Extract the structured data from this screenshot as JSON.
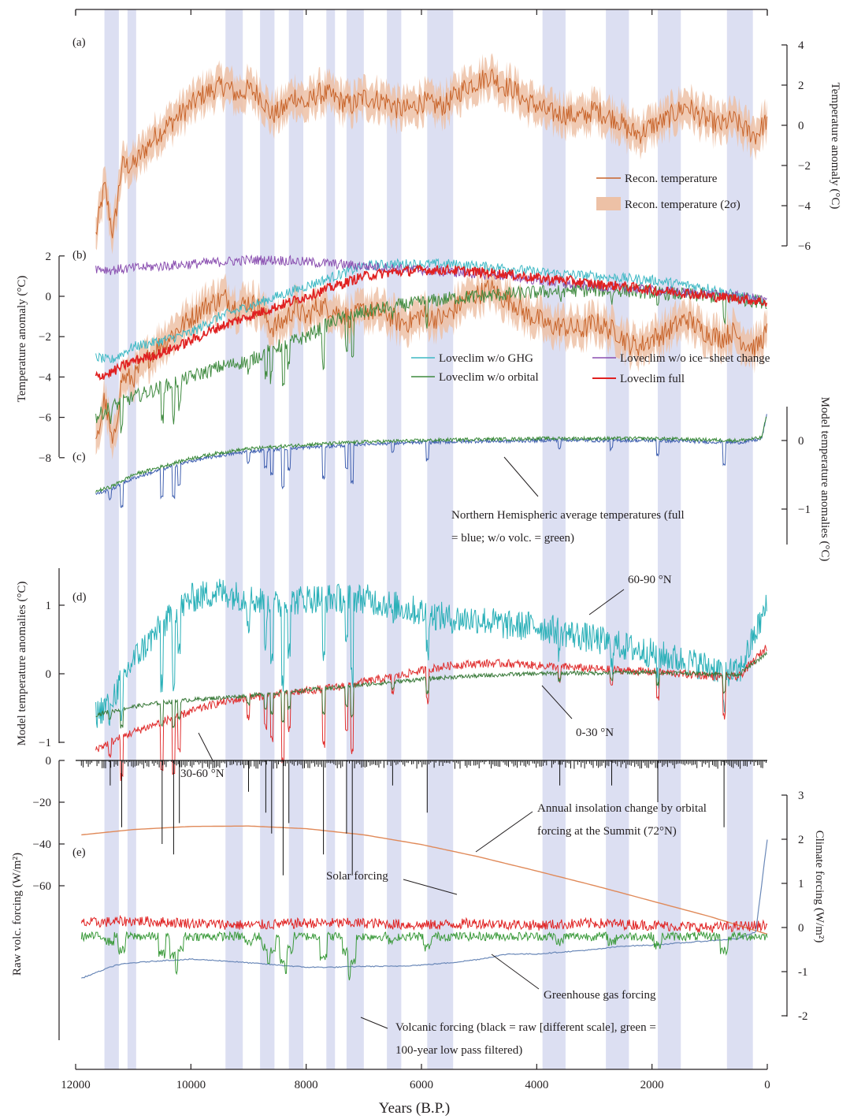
{
  "colors": {
    "band": "#dcdff2",
    "recon_line": "#c8642a",
    "recon_band": "#edc1a6",
    "ghg": "#3db8c4",
    "orbital": "#3f8a3f",
    "ice": "#8a4fb0",
    "full": "#e02020",
    "nh_full": "#4060b0",
    "nh_novolc": "#3a8a3a",
    "lat60": "#2ab0b8",
    "lat30": "#e03030",
    "lat0": "#3a7a3a",
    "insolation": "#e08a5a",
    "solar": "#e02020",
    "ghg_forcing": "#6a88b8",
    "volc_raw": "#111111",
    "volc_filt": "#3a9a3a",
    "text": "#231f20"
  },
  "chart_data": {
    "type": "line",
    "x_axis": {
      "label": "Years (B.P.)",
      "range": [
        12000,
        0
      ],
      "ticks": [
        "12000",
        "10000",
        "8000",
        "6000",
        "4000",
        "2000",
        "0"
      ],
      "tick_values": [
        12000,
        10000,
        8000,
        6000,
        4000,
        2000,
        0
      ]
    },
    "shaded_periods_bp": [
      [
        11500,
        11250
      ],
      [
        11100,
        10950
      ],
      [
        9400,
        9100
      ],
      [
        8800,
        8550
      ],
      [
        8300,
        8050
      ],
      [
        7650,
        7500
      ],
      [
        7300,
        7000
      ],
      [
        6600,
        6350
      ],
      [
        5900,
        5450
      ],
      [
        3900,
        3500
      ],
      [
        2800,
        2400
      ],
      [
        1900,
        1500
      ],
      [
        700,
        250
      ]
    ],
    "panels": [
      {
        "id": "a",
        "label": "(a)",
        "ylabel": "Temperature anomaly (°C)",
        "ylim": [
          -6,
          4
        ],
        "ticks": [
          "4",
          "2",
          "0",
          "−2",
          "−4",
          "−6"
        ],
        "tick_values": [
          4,
          2,
          0,
          -2,
          -4,
          -6
        ],
        "series": [
          {
            "name": "Recon. temperature",
            "x": [
              11650,
              11500,
              11350,
              11200,
              11000,
              10800,
              10600,
              10400,
              10200,
              10000,
              9800,
              9600,
              9400,
              9200,
              9000,
              8800,
              8600,
              8400,
              8200,
              8000,
              7800,
              7600,
              7400,
              7200,
              7000,
              6800,
              6600,
              6400,
              6200,
              6000,
              5800,
              5600,
              5400,
              5200,
              5000,
              4800,
              4600,
              4400,
              4200,
              4000,
              3800,
              3600,
              3400,
              3200,
              3000,
              2800,
              2600,
              2400,
              2200,
              2000,
              1800,
              1600,
              1400,
              1200,
              1000,
              800,
              600,
              400,
              200,
              0
            ],
            "y": [
              -5.5,
              -3.0,
              -5.5,
              -2.0,
              -2.0,
              -1.2,
              -0.5,
              0.0,
              0.5,
              1.0,
              1.5,
              1.8,
              2.0,
              1.5,
              1.8,
              1.5,
              0.5,
              0.8,
              1.5,
              1.0,
              1.6,
              1.5,
              1.2,
              1.0,
              1.4,
              1.3,
              1.2,
              0.8,
              0.8,
              1.2,
              1.0,
              1.0,
              1.5,
              2.0,
              2.2,
              2.5,
              2.0,
              1.8,
              1.2,
              1.0,
              0.6,
              0.6,
              0.5,
              0.4,
              0.8,
              0.5,
              0.3,
              -0.3,
              -0.4,
              0.0,
              0.2,
              0.6,
              1.0,
              0.5,
              0.2,
              0.0,
              0.3,
              -0.2,
              -0.5,
              0.3
            ],
            "uncertainty_2sigma": 0.8
          }
        ]
      },
      {
        "id": "b",
        "label": "(b)",
        "ylabel": "Temperature anomaly (°C)",
        "ylim": [
          -8,
          2
        ],
        "ticks": [
          "2",
          "0",
          "−2",
          "−4",
          "−6",
          "−8"
        ],
        "tick_values": [
          2,
          0,
          -2,
          -4,
          -6,
          -8
        ],
        "x": [
          11650,
          11400,
          11000,
          10500,
          10000,
          9500,
          9000,
          8500,
          8000,
          7500,
          7000,
          6500,
          6000,
          5500,
          5000,
          4500,
          4000,
          3500,
          3000,
          2500,
          2000,
          1500,
          1000,
          500,
          0
        ],
        "series": [
          {
            "name": "Loveclim w/o GHG",
            "y": [
              -3.0,
              -3.2,
              -2.5,
              -2.2,
              -1.8,
              -1.0,
              -0.5,
              0.0,
              0.5,
              1.0,
              1.5,
              1.6,
              1.6,
              1.6,
              1.5,
              1.4,
              1.2,
              1.1,
              1.0,
              0.9,
              0.8,
              0.6,
              0.4,
              0.0,
              -0.3
            ]
          },
          {
            "name": "Loveclim w/o orbital",
            "y": [
              -6.0,
              -5.5,
              -5.0,
              -4.5,
              -4.0,
              -3.5,
              -3.2,
              -2.5,
              -2.0,
              -1.2,
              -0.8,
              -0.5,
              -0.3,
              -0.1,
              0.0,
              0.1,
              0.2,
              0.3,
              0.3,
              0.3,
              0.2,
              0.1,
              0.0,
              -0.1,
              -0.3
            ]
          },
          {
            "name": "Loveclim w/o ice−sheet change",
            "y": [
              1.4,
              1.3,
              1.4,
              1.5,
              1.6,
              1.7,
              1.8,
              1.8,
              1.7,
              1.6,
              1.5,
              1.4,
              1.3,
              1.2,
              1.1,
              1.0,
              0.8,
              0.6,
              0.5,
              0.4,
              0.3,
              0.2,
              0.1,
              0.0,
              -0.2
            ]
          },
          {
            "name": "Loveclim full",
            "y": [
              -4.0,
              -3.8,
              -3.2,
              -2.8,
              -2.2,
              -1.5,
              -1.0,
              -0.5,
              0.0,
              0.5,
              1.0,
              1.2,
              1.3,
              1.3,
              1.2,
              1.1,
              0.9,
              0.8,
              0.6,
              0.5,
              0.3,
              0.2,
              0.0,
              -0.1,
              -0.3
            ]
          }
        ]
      },
      {
        "id": "c",
        "label": "(c)",
        "ylabel": "Model temperature anomalies (°C)",
        "ylim": [
          -1.5,
          0.5
        ],
        "ticks": [
          "0",
          "−1"
        ],
        "tick_values": [
          0,
          -1
        ],
        "x": [
          11650,
          11400,
          11000,
          10500,
          10000,
          9500,
          9000,
          8500,
          8000,
          7500,
          7000,
          6500,
          6000,
          5500,
          5000,
          4500,
          4000,
          3500,
          3000,
          2500,
          2000,
          1500,
          1000,
          500,
          100,
          0
        ],
        "series": [
          {
            "name": "Northern Hemispheric average temperatures (full = blue; w/o volc. = green)",
            "key": "full",
            "y": [
              -0.78,
              -0.72,
              -0.55,
              -0.42,
              -0.3,
              -0.22,
              -0.16,
              -0.13,
              -0.1,
              -0.08,
              -0.05,
              -0.04,
              -0.03,
              -0.02,
              -0.01,
              -0.01,
              0.0,
              0.01,
              0.0,
              0.0,
              0.0,
              -0.01,
              -0.02,
              -0.03,
              0.02,
              0.4
            ]
          },
          {
            "key": "w/o volc.",
            "y": [
              -0.74,
              -0.68,
              -0.5,
              -0.38,
              -0.26,
              -0.18,
              -0.12,
              -0.09,
              -0.06,
              -0.04,
              -0.02,
              -0.01,
              0.0,
              0.01,
              0.02,
              0.02,
              0.03,
              0.03,
              0.03,
              0.03,
              0.03,
              0.02,
              0.01,
              0.0,
              0.04,
              0.4
            ]
          }
        ],
        "annotation": "Northern Hemispheric average temperatures (full = blue; w/o volc. = green)"
      },
      {
        "id": "d",
        "label": "(d)",
        "ylabel": "Model temperature anomalies (°C)",
        "ylim": [
          -1.5,
          1.5
        ],
        "ticks": [
          "1",
          "0",
          "−1"
        ],
        "tick_values": [
          1,
          0,
          -1
        ],
        "x": [
          11650,
          11400,
          11000,
          10500,
          10000,
          9500,
          9000,
          8500,
          8000,
          7500,
          7000,
          6500,
          6000,
          5500,
          5000,
          4500,
          4000,
          3500,
          3000,
          2500,
          2000,
          1500,
          1000,
          500,
          0
        ],
        "series": [
          {
            "name": "60-90 °N",
            "y": [
              -0.6,
              -0.4,
              0.2,
              0.7,
              1.1,
              1.2,
              1.1,
              1.0,
              1.1,
              1.1,
              1.1,
              1.0,
              0.9,
              0.8,
              0.8,
              0.7,
              0.7,
              0.6,
              0.5,
              0.4,
              0.3,
              0.2,
              0.1,
              0.0,
              1.0
            ]
          },
          {
            "name": "30-60 °N",
            "y": [
              -1.1,
              -1.0,
              -0.85,
              -0.7,
              -0.55,
              -0.42,
              -0.35,
              -0.3,
              -0.25,
              -0.2,
              -0.12,
              -0.05,
              0.05,
              0.12,
              0.15,
              0.15,
              0.12,
              0.1,
              0.07,
              0.05,
              0.03,
              0.0,
              -0.03,
              -0.05,
              0.4
            ]
          },
          {
            "name": "0-30 °N",
            "y": [
              -0.6,
              -0.55,
              -0.48,
              -0.42,
              -0.38,
              -0.35,
              -0.32,
              -0.28,
              -0.24,
              -0.2,
              -0.16,
              -0.12,
              -0.08,
              -0.05,
              -0.03,
              -0.01,
              0.0,
              0.01,
              0.01,
              0.02,
              0.02,
              0.01,
              0.0,
              -0.01,
              0.3
            ]
          }
        ]
      },
      {
        "id": "e",
        "label": "(e)",
        "ylabel_left": "Raw volc. forcing (W/m²)",
        "ylabel_right": "Climate forcing (W/m²)",
        "left_ylim": [
          -65,
          10
        ],
        "left_ticks": [
          "0",
          "−20",
          "−40",
          "−60"
        ],
        "left_tick_values": [
          0,
          -20,
          -40,
          -60
        ],
        "right_ylim": [
          -2,
          3
        ],
        "right_ticks": [
          "3",
          "2",
          "1",
          "0",
          "-1",
          "-2"
        ],
        "right_tick_values": [
          3,
          2,
          1,
          0,
          -1,
          -2
        ],
        "series": [
          {
            "name": "Annual insolation change by orbital forcing at the Summit (72°N)",
            "axis": "right",
            "x": [
              11900,
              11000,
              10000,
              9000,
              8000,
              7000,
              6000,
              5000,
              4000,
              3000,
              2000,
              1000,
              0
            ],
            "y": [
              2.1,
              2.22,
              2.29,
              2.3,
              2.24,
              2.1,
              1.88,
              1.6,
              1.28,
              0.95,
              0.6,
              0.25,
              -0.15
            ]
          },
          {
            "name": "Solar forcing",
            "axis": "right",
            "x": [
              11900,
              11000,
              10000,
              9000,
              8000,
              7000,
              6000,
              5000,
              4000,
              3000,
              2000,
              1000,
              0
            ],
            "y": [
              0.1,
              0.15,
              0.1,
              0.05,
              0.1,
              0.1,
              0.05,
              0.1,
              0.05,
              0.1,
              0.05,
              0.0,
              0.05
            ]
          },
          {
            "name": "Greenhouse gas forcing",
            "axis": "right",
            "x": [
              11900,
              11600,
              11300,
              11000,
              10500,
              10000,
              9500,
              9000,
              8500,
              8000,
              7500,
              7000,
              6500,
              6000,
              5500,
              5000,
              4500,
              4000,
              3500,
              3000,
              2500,
              2000,
              1500,
              1000,
              500,
              200,
              0
            ],
            "y": [
              -1.15,
              -1.0,
              -0.85,
              -0.8,
              -0.75,
              -0.72,
              -0.75,
              -0.8,
              -0.85,
              -0.9,
              -0.9,
              -0.88,
              -0.88,
              -0.85,
              -0.8,
              -0.72,
              -0.6,
              -0.6,
              -0.55,
              -0.5,
              -0.42,
              -0.4,
              -0.35,
              -0.3,
              -0.25,
              -0.1,
              2.0
            ]
          },
          {
            "name": "Volcanic forcing (black = raw [different scale], green = 100-year low pass filtered)",
            "axis": "left",
            "events_x": [
              11400,
              11200,
              10500,
              10300,
              10200,
              9000,
              8700,
              8600,
              8400,
              8300,
              7700,
              7300,
              7200,
              6500,
              5900,
              3600,
              2700,
              1900,
              750
            ],
            "events_y": [
              -12,
              -32,
              -40,
              -45,
              -30,
              -15,
              -25,
              -35,
              -55,
              -30,
              -45,
              -35,
              -55,
              -12,
              -25,
              -12,
              -12,
              -20,
              -32
            ]
          }
        ]
      }
    ],
    "legend_a": [
      "Recon. temperature",
      "Recon. temperature (2σ)"
    ],
    "legend_b": [
      "Loveclim w/o GHG",
      "Loveclim w/o ice−sheet change",
      "Loveclim w/o orbital",
      "Loveclim full"
    ]
  }
}
